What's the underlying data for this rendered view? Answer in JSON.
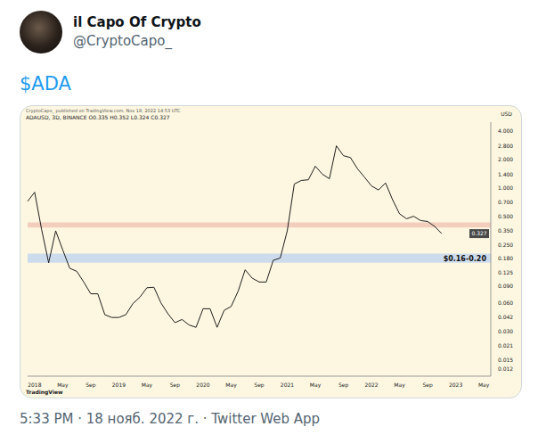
{
  "tweet": {
    "name": "il Capo Of Crypto",
    "handle": "@CryptoCapo_",
    "text": "$ADA",
    "footer": "5:33 PM · 18 нояб. 2022 г. · Twitter Web App"
  },
  "chart_data": {
    "type": "line",
    "title": "ADAUSD, 3D, BINANCE  O0.335 H0.352 L0.324 C0.327",
    "subtitle": "CryptoCapo_ published on TradingView.com, Nov 18, 2022 14:53 UTC",
    "source": "TradingView",
    "y_label": "USD",
    "log": "y",
    "grid": false,
    "color": "#1e1e1e",
    "categories": [
      null,
      "2018",
      null,
      null,
      null,
      "May",
      null,
      null,
      null,
      "Sep",
      null,
      null,
      null,
      "2019",
      null,
      null,
      null,
      "May",
      null,
      null,
      null,
      "Sep",
      null,
      null,
      null,
      "2020",
      null,
      null,
      null,
      "May",
      null,
      null,
      null,
      "Sep",
      null,
      null,
      null,
      "2021",
      null,
      null,
      null,
      "May",
      null,
      null,
      null,
      "Sep",
      null,
      null,
      null,
      "2022",
      null,
      null,
      null,
      "May",
      null,
      null,
      null,
      "Sep",
      null,
      null,
      null,
      "2023",
      null,
      null,
      null,
      "May",
      null
    ],
    "values": [
      0.72,
      0.9,
      0.36,
      0.16,
      0.35,
      0.22,
      0.14,
      0.13,
      0.1,
      0.075,
      0.075,
      0.045,
      0.042,
      0.042,
      0.045,
      0.059,
      0.069,
      0.087,
      0.088,
      0.06,
      0.046,
      0.037,
      0.04,
      0.035,
      0.033,
      0.052,
      0.052,
      0.033,
      0.05,
      0.055,
      0.08,
      0.135,
      0.11,
      0.1,
      0.1,
      0.17,
      0.18,
      0.35,
      1.1,
      1.2,
      1.22,
      1.7,
      1.4,
      1.25,
      2.8,
      2.2,
      2.1,
      1.6,
      1.3,
      1.05,
      0.95,
      1.13,
      0.75,
      0.53,
      0.47,
      0.5,
      0.45,
      0.44,
      0.39,
      0.327,
      null,
      null,
      null,
      null,
      null,
      null,
      null
    ],
    "ylim": [
      0.01,
      5
    ],
    "yticks": [
      {
        "value": 4,
        "label": "4.000"
      },
      {
        "value": 2.8,
        "label": "2.800"
      },
      {
        "value": 2,
        "label": "2.000"
      },
      {
        "value": 1.4,
        "label": "1.400"
      },
      {
        "value": 1,
        "label": "1.000"
      },
      {
        "value": 0.7,
        "label": "0.700"
      },
      {
        "value": 0.5,
        "label": "0.500"
      },
      {
        "value": 0.35,
        "label": "0.350"
      },
      {
        "value": 0.25,
        "label": "0.250"
      },
      {
        "value": 0.18,
        "label": "0.180"
      },
      {
        "value": 0.125,
        "label": "0.125"
      },
      {
        "value": 0.09,
        "label": "0.090"
      },
      {
        "value": 0.06,
        "label": "0.060"
      },
      {
        "value": 0.042,
        "label": "0.042"
      },
      {
        "value": 0.03,
        "label": "0.030"
      },
      {
        "value": 0.021,
        "label": "0.021"
      },
      {
        "value": 0.015,
        "label": "0.015"
      },
      {
        "value": 0.012,
        "label": "0.012"
      }
    ],
    "zones": [
      {
        "from": 0.38,
        "to": 0.43,
        "color": "#f2c9b9"
      },
      {
        "from": 0.16,
        "to": 0.2,
        "color": "#c8d8ee",
        "label": "$0.16-0.20"
      }
    ],
    "annotations": [
      {
        "text": "0.327",
        "y": 0.327
      }
    ]
  }
}
